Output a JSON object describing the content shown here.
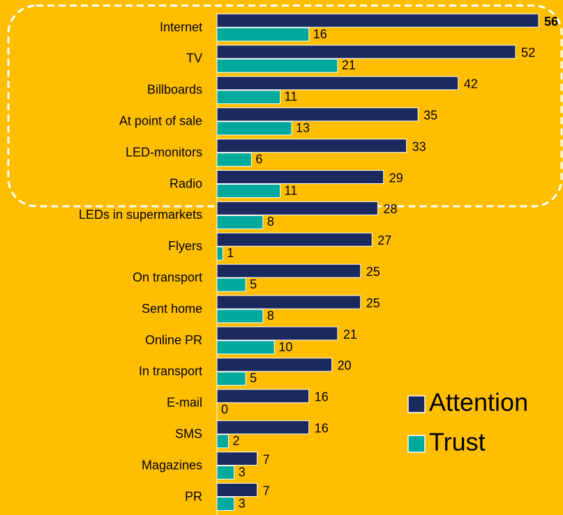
{
  "chart_data": {
    "type": "hbar",
    "categories": [
      "Internet",
      "TV",
      "Billboards",
      "At point of sale",
      "LED-monitors",
      "Radio",
      "LEDs  in supermarkets",
      "Flyers",
      "On transport",
      "Sent home",
      "Online PR",
      "In transport",
      "E-mail",
      "SMS",
      "Magazines",
      "PR"
    ],
    "series": [
      {
        "name": "Attention",
        "color": "#1B2A5E",
        "values": [
          56,
          52,
          42,
          35,
          33,
          29,
          28,
          27,
          25,
          25,
          21,
          20,
          16,
          16,
          7,
          7
        ]
      },
      {
        "name": "Trust",
        "color": "#00A99D",
        "values": [
          16,
          21,
          11,
          13,
          6,
          11,
          8,
          1,
          5,
          8,
          10,
          5,
          0,
          2,
          3,
          3
        ]
      }
    ]
  }
}
